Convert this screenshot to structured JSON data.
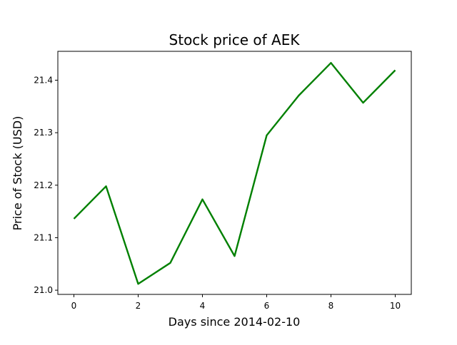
{
  "chart_data": {
    "type": "line",
    "title": "Stock price of AEK",
    "xlabel": "Days since 2014-02-10",
    "ylabel": "Price of Stock (USD)",
    "x": [
      0,
      1,
      2,
      3,
      4,
      5,
      6,
      7,
      8,
      9,
      10
    ],
    "series": [
      {
        "values": [
          21.136,
          21.198,
          21.012,
          21.052,
          21.173,
          21.065,
          21.295,
          21.371,
          21.433,
          21.357,
          21.419
        ],
        "color": "#008000"
      }
    ],
    "xlim": [
      -0.5,
      10.5
    ],
    "ylim": [
      20.992,
      21.455
    ],
    "xticks": [
      0,
      2,
      4,
      6,
      8,
      10
    ],
    "yticks": [
      21.0,
      21.1,
      21.2,
      21.3,
      21.4
    ],
    "ytick_labels": [
      "21.0",
      "21.1",
      "21.2",
      "21.3",
      "21.4"
    ],
    "grid": false,
    "legend": "none"
  }
}
